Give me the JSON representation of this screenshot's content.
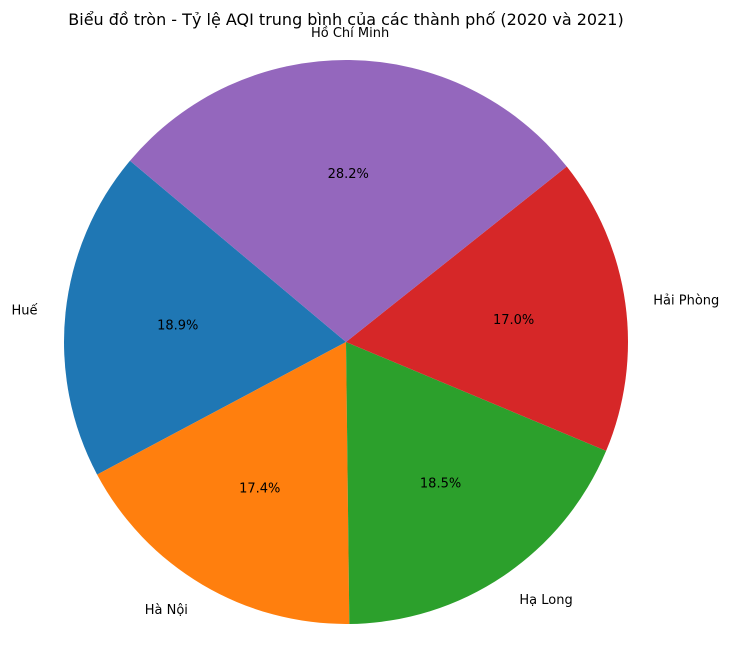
{
  "chart_data": {
    "type": "pie",
    "title": "Biểu đồ tròn - Tỷ lệ AQI trung bình của các thành phố (2020 và 2021)",
    "slices": [
      {
        "label": "Huế",
        "value": 18.9,
        "pct_label": "18.9%",
        "color": "#1f77b4"
      },
      {
        "label": "Hà Nội",
        "value": 17.4,
        "pct_label": "17.4%",
        "color": "#ff7f0e"
      },
      {
        "label": "Hạ Long",
        "value": 18.5,
        "pct_label": "18.5%",
        "color": "#2ca02c"
      },
      {
        "label": "Hải Phòng",
        "value": 17.0,
        "pct_label": "17.0%",
        "color": "#d62728"
      },
      {
        "label": "Hồ Chí Minh",
        "value": 28.2,
        "pct_label": "28.2%",
        "color": "#9467bd"
      }
    ],
    "start_angle_deg": 140,
    "direction": "counterclockwise"
  }
}
